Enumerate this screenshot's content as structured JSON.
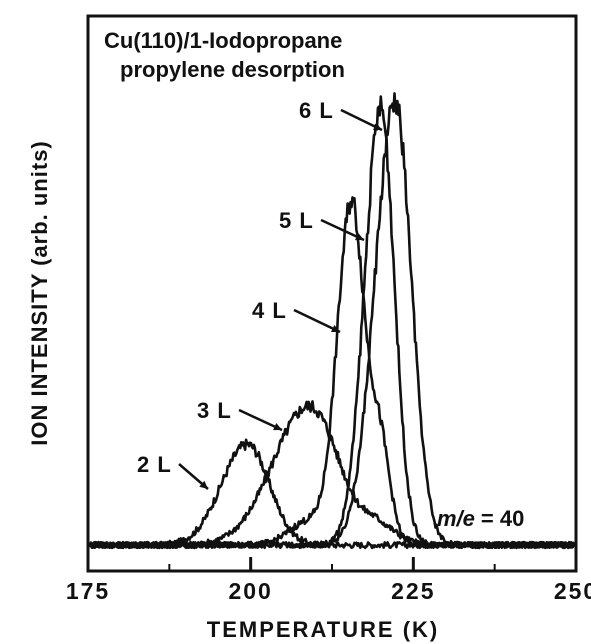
{
  "chart_data": {
    "type": "line",
    "title": "Cu(110)/1-Iodopropane",
    "subtitle": "propylene desorption",
    "xlabel": "TEMPERATURE (K)",
    "ylabel": "ION INTENSITY (arb. units)",
    "xlim": [
      175,
      250
    ],
    "x_ticks": [
      175,
      200,
      225,
      250
    ],
    "x_tick_labels": [
      "175",
      "200",
      "225",
      "250"
    ],
    "ylim": [
      0,
      1
    ],
    "grid": false,
    "mass_label": {
      "prefix": "m/e",
      "value": "= 40"
    },
    "series": [
      {
        "name": "2 L",
        "peaks": [
          {
            "center": 199.5,
            "height": 0.21,
            "wl": 4.0,
            "wr": 3.4
          }
        ]
      },
      {
        "name": "3 L",
        "peaks": [
          {
            "center": 209.0,
            "height": 0.29,
            "wl": 5.5,
            "wr": 4.6
          },
          {
            "center": 219.5,
            "height": 0.035,
            "wl": 2.0,
            "wr": 3.0
          }
        ]
      },
      {
        "name": "4 L",
        "peaks": [
          {
            "center": 215.3,
            "height": 0.65,
            "wl": 2.1,
            "wr": 1.8
          },
          {
            "center": 219.5,
            "height": 0.25,
            "wl": 2.5,
            "wr": 1.7
          },
          {
            "center": 209.0,
            "height": 0.05,
            "wl": 3.0,
            "wr": 3.0
          }
        ]
      },
      {
        "name": "5 L",
        "peaks": [
          {
            "center": 220.0,
            "height": 0.91,
            "wl": 2.5,
            "wr": 2.1
          }
        ]
      },
      {
        "name": "6 L",
        "peaks": [
          {
            "center": 222.2,
            "height": 0.92,
            "wl": 3.1,
            "wr": 2.5
          }
        ]
      }
    ]
  }
}
